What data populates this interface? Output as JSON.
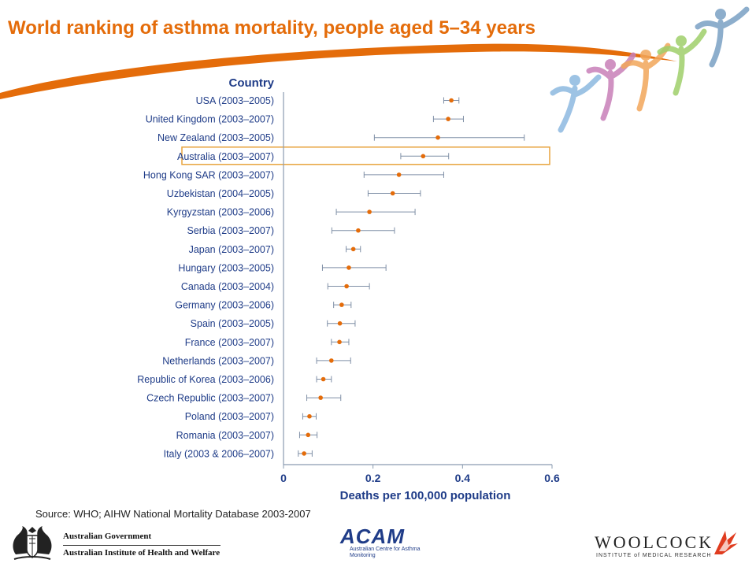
{
  "slide": {
    "title": "World ranking of asthma mortality, people aged 5–34 years",
    "source": "Source: WHO; AIHW National Mortality Database 2003-2007"
  },
  "colors": {
    "title": "#e46c0a",
    "point": "#e46c0a",
    "error_bar": "#7f8fa6",
    "highlight_box": "#e8a33d",
    "heading": "#1f3c88",
    "swoosh": "#e46c0a"
  },
  "chart_data": {
    "type": "scatter",
    "category_header": "Country",
    "xlabel": "Deaths per 100,000 population",
    "xlim": [
      0,
      0.6
    ],
    "xticks": [
      0,
      0.2,
      0.4,
      0.6
    ],
    "xtick_labels": [
      "0",
      "0.2",
      "0.4",
      "0.6"
    ],
    "highlight": "Australia (2003–2007)",
    "grid": false,
    "categories": [
      "USA (2003–2005)",
      "United Kingdom (2003–2007)",
      "New Zealand (2003–2005)",
      "Australia (2003–2007)",
      "Hong Kong SAR (2003–2007)",
      "Uzbekistan (2004–2005)",
      "Kyrgyzstan (2003–2006)",
      "Serbia (2003–2007)",
      "Japan (2003–2007)",
      "Hungary (2003–2005)",
      "Canada (2003–2004)",
      "Germany (2003–2006)",
      "Spain (2003–2005)",
      "France (2003–2007)",
      "Netherlands (2003–2007)",
      "Republic of Korea (2003–2006)",
      "Czech Republic (2003–2007)",
      "Poland (2003–2007)",
      "Romania (2003–2007)",
      "Italy (2003 & 2006–2007)"
    ],
    "values": [
      0.375,
      0.368,
      0.345,
      0.312,
      0.258,
      0.244,
      0.192,
      0.167,
      0.156,
      0.146,
      0.141,
      0.13,
      0.126,
      0.125,
      0.107,
      0.089,
      0.083,
      0.058,
      0.055,
      0.046
    ],
    "lower": [
      0.358,
      0.335,
      0.203,
      0.262,
      0.18,
      0.189,
      0.118,
      0.108,
      0.14,
      0.087,
      0.099,
      0.112,
      0.098,
      0.107,
      0.074,
      0.074,
      0.052,
      0.043,
      0.036,
      0.033
    ],
    "upper": [
      0.392,
      0.402,
      0.538,
      0.369,
      0.358,
      0.306,
      0.294,
      0.248,
      0.172,
      0.229,
      0.192,
      0.151,
      0.16,
      0.146,
      0.15,
      0.107,
      0.128,
      0.073,
      0.075,
      0.064
    ]
  },
  "footer": {
    "gov_line1": "Australian Government",
    "gov_line2": "Australian Institute of Health and Welfare",
    "acam_name": "ACAM",
    "acam_sub": "Australian Centre for Asthma Monitoring",
    "woolcock_name": "WOOLCOCK",
    "woolcock_sub": "INSTITUTE of MEDICAL RESEARCH",
    "crest_icon": "coat-of-arms-icon",
    "woolcock_icon": "woolcock-flame-icon"
  }
}
